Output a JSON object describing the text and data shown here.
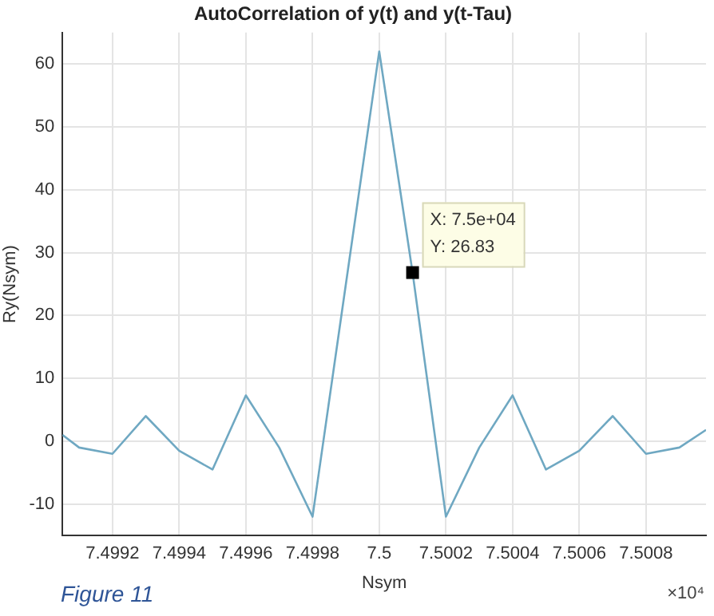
{
  "chart_data": {
    "type": "line",
    "title": "AutoCorrelation of y(t) and y(t-Tau)",
    "xlabel": "Nsym",
    "ylabel": "Ry(Nsym)",
    "x": [
      7.49905,
      7.4991,
      7.4992,
      7.4993,
      7.4994,
      7.4995,
      7.4996,
      7.4997,
      7.4998,
      7.4999,
      7.5,
      7.5001,
      7.5002,
      7.5003,
      7.5004,
      7.5005,
      7.5006,
      7.5007,
      7.5008,
      7.5009,
      7.50098
    ],
    "series": [
      {
        "color": "#6fa8c2",
        "values": [
          1,
          -1,
          -2,
          4,
          -1.5,
          -4.5,
          7.3,
          -1,
          -12,
          25,
          62,
          26.83,
          -12,
          -1,
          7.3,
          -4.5,
          -1.5,
          4,
          -2,
          -1,
          1.8
        ]
      }
    ],
    "xlim": [
      7.49905,
      7.50098
    ],
    "xticks": [
      7.4992,
      7.4994,
      7.4996,
      7.4998,
      7.5,
      7.5002,
      7.5004,
      7.5006,
      7.5008
    ],
    "ylim": [
      -15,
      65
    ],
    "yticks": [
      -10,
      0,
      10,
      20,
      30,
      40,
      50,
      60
    ],
    "grid": true,
    "legend": false,
    "marker": "none",
    "line_style": "solid",
    "annotations": [
      {
        "text": "X: 7.5e+04\nY: 26.83",
        "x": 7.5001,
        "y": 26.83
      },
      "×10⁴",
      "Figure 11"
    ]
  }
}
